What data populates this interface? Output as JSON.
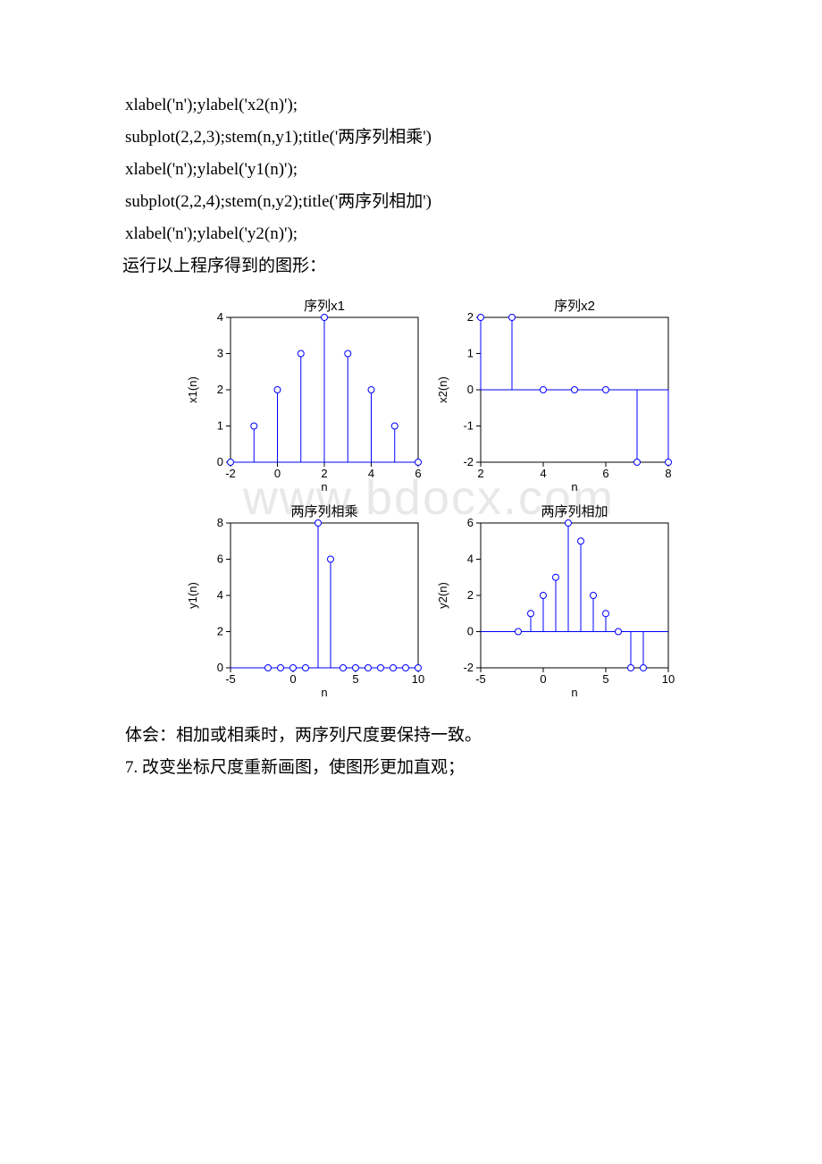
{
  "code": {
    "l1": "xlabel('n');ylabel('x2(n)');",
    "l2": "subplot(2,2,3);stem(n,y1);title('两序列相乘')",
    "l3": "xlabel('n');ylabel('y1(n)');",
    "l4": "subplot(2,2,4);stem(n,y2);title('两序列相加')",
    "l5": "xlabel('n');ylabel('y2(n)');"
  },
  "run_text": "运行以上程序得到的图形：",
  "note1": "体会：相加或相乘时，两序列尺度要保持一致。",
  "note2": "7. 改变坐标尺度重新画图，使图形更加直观；",
  "watermark": "www.bdocx.com",
  "charts": {
    "background_color": "#ffffff",
    "axis_color": "#000000",
    "grid_color": "#000000",
    "stem_color": "#0000ff",
    "marker_stroke": "#0000ff",
    "marker_fill": "#ffffff",
    "marker_radius": 3.5,
    "line_width": 1,
    "tick_font": 13,
    "title_font": 15,
    "label_font": 13,
    "p1": {
      "title": "序列x1",
      "xlabel": "n",
      "ylabel": "x1(n)",
      "xlim": [
        -2,
        6
      ],
      "ylim": [
        0,
        4
      ],
      "xticks": [
        -2,
        0,
        2,
        4,
        6
      ],
      "yticks": [
        0,
        1,
        2,
        3,
        4
      ],
      "x": [
        -2,
        -1,
        0,
        1,
        2,
        3,
        4,
        5,
        6
      ],
      "y": [
        0,
        1,
        2,
        3,
        4,
        3,
        2,
        1,
        0
      ]
    },
    "p2": {
      "title": "序列x2",
      "xlabel": "n",
      "ylabel": "x2(n)",
      "xlim": [
        2,
        8
      ],
      "ylim": [
        -2,
        2
      ],
      "xticks": [
        2,
        4,
        6,
        8
      ],
      "yticks": [
        -2,
        -1,
        0,
        1,
        2
      ],
      "x": [
        2,
        3,
        4,
        5,
        6,
        7,
        8
      ],
      "y": [
        2,
        2,
        0,
        0,
        0,
        -2,
        -2
      ]
    },
    "p3": {
      "title": "两序列相乘",
      "xlabel": "n",
      "ylabel": "y1(n)",
      "xlim": [
        -5,
        10
      ],
      "ylim": [
        0,
        8
      ],
      "xticks": [
        -5,
        0,
        5,
        10
      ],
      "yticks": [
        0,
        2,
        4,
        6,
        8
      ],
      "x": [
        -2,
        -1,
        0,
        1,
        2,
        3,
        4,
        5,
        6,
        7,
        8,
        9,
        10
      ],
      "y": [
        0,
        0,
        0,
        0,
        8,
        6,
        0,
        0,
        0,
        0,
        0,
        0,
        0
      ]
    },
    "p4": {
      "title": "两序列相加",
      "xlabel": "n",
      "ylabel": "y2(n)",
      "xlim": [
        -5,
        10
      ],
      "ylim": [
        -2,
        6
      ],
      "xticks": [
        -5,
        0,
        5,
        10
      ],
      "yticks": [
        -2,
        0,
        2,
        4,
        6
      ],
      "x": [
        -2,
        -1,
        0,
        1,
        2,
        3,
        4,
        5,
        6,
        7,
        8
      ],
      "y": [
        0,
        1,
        2,
        3,
        6,
        5,
        2,
        1,
        0,
        -2,
        -2
      ]
    }
  }
}
